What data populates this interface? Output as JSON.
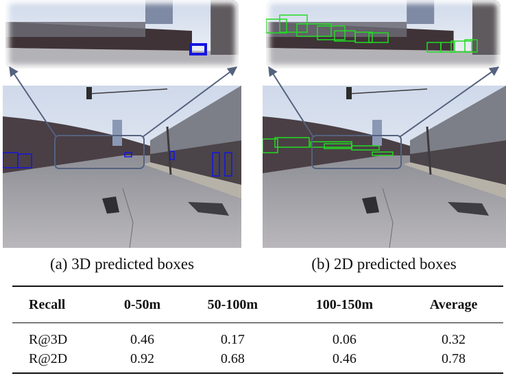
{
  "figure": {
    "panels": [
      {
        "caption": "(a) 3D predicted boxes"
      },
      {
        "caption": "(b) 2D predicted boxes"
      }
    ]
  },
  "table": {
    "header": [
      "Recall",
      "0-50m",
      "50-100m",
      "100-150m",
      "Average"
    ],
    "rows": [
      [
        "R@3D",
        0.46,
        0.17,
        0.06,
        0.32
      ],
      [
        "R@2D",
        0.92,
        0.68,
        0.46,
        0.78
      ]
    ]
  }
}
